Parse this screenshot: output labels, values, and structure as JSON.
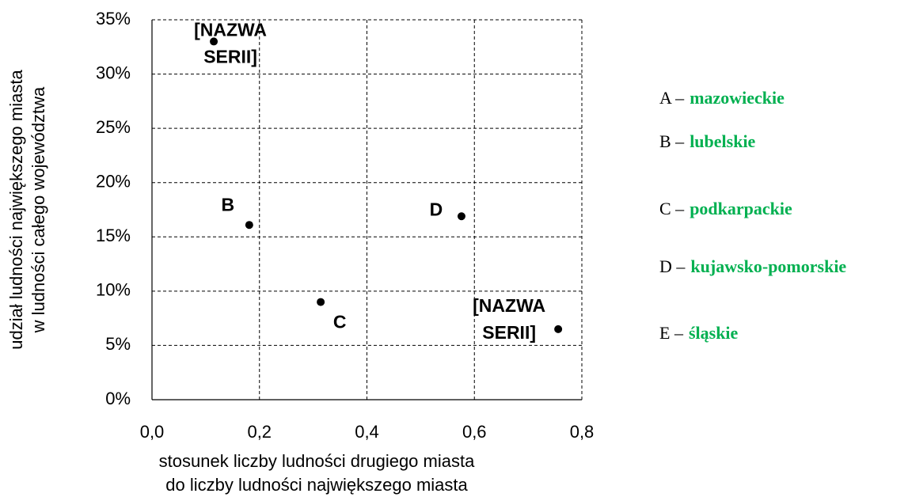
{
  "chart_data": {
    "type": "scatter",
    "xlabel": [
      "stosunek liczby ludności drugiego miasta",
      "do liczby ludności największego miasta"
    ],
    "ylabel": [
      "udział ludności największego miasta",
      "w ludności całego województwa"
    ],
    "x": [
      0.115,
      0.181,
      0.314,
      0.576,
      0.756
    ],
    "series": [
      {
        "color": "#000000",
        "values": [
          33,
          16.1,
          9,
          16.9,
          6.5
        ]
      }
    ],
    "point_labels": [
      [
        "[NAZWA",
        "SERII]"
      ],
      [
        "B"
      ],
      [
        "C"
      ],
      [
        "D"
      ],
      [
        "[NAZWA",
        "SERII]"
      ]
    ],
    "xlim": [
      0,
      0.8
    ],
    "xticks": [
      {
        "value": 0,
        "label": "0,0"
      },
      {
        "value": 0.2,
        "label": "0,2"
      },
      {
        "value": 0.4,
        "label": "0,4"
      },
      {
        "value": 0.6,
        "label": "0,6"
      },
      {
        "value": 0.8,
        "label": "0,8"
      }
    ],
    "ylim": [
      0,
      35
    ],
    "yticks": [
      {
        "value": 0,
        "label": "0%"
      },
      {
        "value": 5,
        "label": "5%"
      },
      {
        "value": 10,
        "label": "10%"
      },
      {
        "value": 15,
        "label": "15%"
      },
      {
        "value": 20,
        "label": "20%"
      },
      {
        "value": 25,
        "label": "25%"
      },
      {
        "value": 30,
        "label": "30%"
      },
      {
        "value": 35,
        "label": "35%"
      }
    ],
    "grid": true,
    "legend_items": [
      {
        "key": "A –",
        "name": "mazowieckie"
      },
      {
        "key": "B –",
        "name": "lubelskie"
      },
      {
        "key": "C –",
        "name": "podkarpackie"
      },
      {
        "key": "D –",
        "name": "kujawsko-pomorskie"
      },
      {
        "key": "E –",
        "name": "śląskie"
      }
    ],
    "legend_name_color": "#00b050"
  }
}
